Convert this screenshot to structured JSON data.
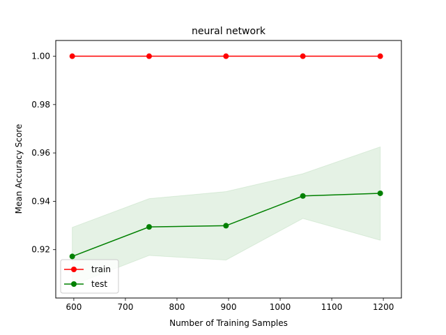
{
  "chart_data": {
    "type": "line",
    "title": "neural network",
    "xlabel": "Number of Training Samples",
    "ylabel": "Mean Accuracy Score",
    "xlim": [
      565,
      1235
    ],
    "ylim": [
      0.9,
      1.0065
    ],
    "xticks": [
      600,
      700,
      800,
      900,
      1000,
      1100,
      1200
    ],
    "yticks": [
      0.92,
      0.94,
      0.96,
      0.98,
      1.0
    ],
    "xtick_labels": [
      "600",
      "700",
      "800",
      "900",
      "1000",
      "1100",
      "1200"
    ],
    "ytick_labels": [
      "0.92",
      "0.94",
      "0.96",
      "0.98",
      "1.00"
    ],
    "x": [
      597,
      746,
      895,
      1044,
      1194
    ],
    "series": [
      {
        "name": "train",
        "color": "#ff0000",
        "values": [
          1.0,
          1.0,
          1.0,
          1.0,
          1.0
        ]
      },
      {
        "name": "test",
        "color": "#008000",
        "values": [
          0.9172,
          0.9294,
          0.9299,
          0.9422,
          0.9433
        ],
        "band_upper": [
          0.9292,
          0.9411,
          0.944,
          0.9514,
          0.9625
        ],
        "band_lower": [
          0.9053,
          0.9176,
          0.9157,
          0.9329,
          0.9239
        ],
        "band_color": "#008000"
      }
    ],
    "grid": false,
    "legend": "lower-left"
  }
}
